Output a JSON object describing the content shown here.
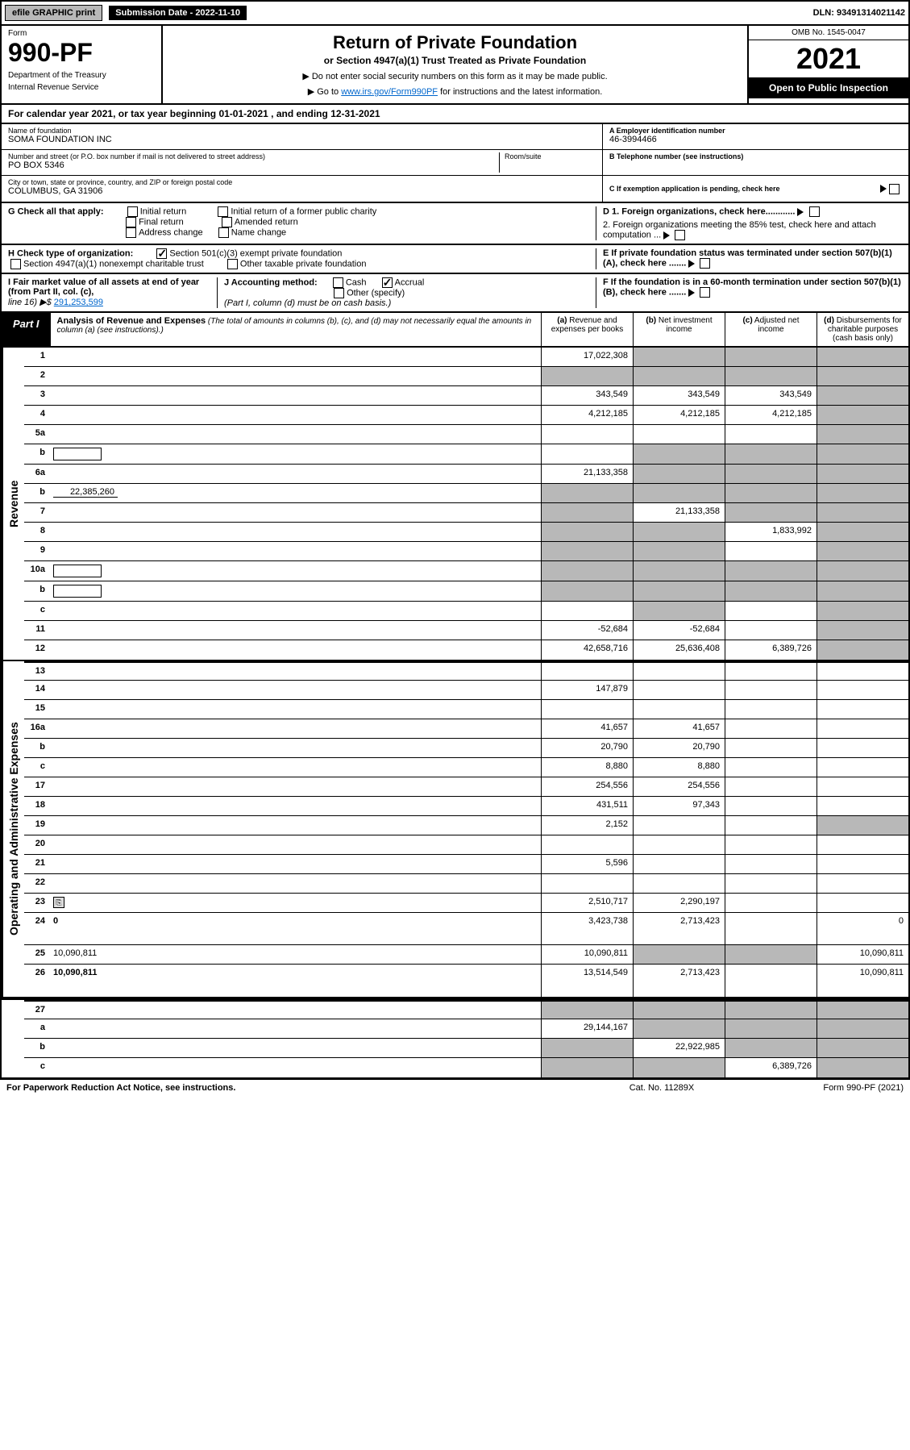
{
  "top_bar": {
    "efile": "efile GRAPHIC print",
    "submission": "Submission Date - 2022-11-10",
    "dln": "DLN: 93491314021142"
  },
  "header": {
    "form_label": "Form",
    "form_number": "990-PF",
    "dept1": "Department of the Treasury",
    "dept2": "Internal Revenue Service",
    "title": "Return of Private Foundation",
    "subtitle": "or Section 4947(a)(1) Trust Treated as Private Foundation",
    "instr1": "▶ Do not enter social security numbers on this form as it may be made public.",
    "instr2_prefix": "▶ Go to ",
    "instr2_link": "www.irs.gov/Form990PF",
    "instr2_suffix": " for instructions and the latest information.",
    "omb": "OMB No. 1545-0047",
    "year": "2021",
    "open_public": "Open to Public Inspection"
  },
  "cal_year": {
    "prefix": "For calendar year 2021, or tax year beginning ",
    "begin": "01-01-2021",
    "mid": " , and ending ",
    "end": "12-31-2021"
  },
  "foundation": {
    "name_lbl": "Name of foundation",
    "name": "SOMA FOUNDATION INC",
    "addr_lbl": "Number and street (or P.O. box number if mail is not delivered to street address)",
    "addr": "PO BOX 5346",
    "room_lbl": "Room/suite",
    "room": "",
    "city_lbl": "City or town, state or province, country, and ZIP or foreign postal code",
    "city": "COLUMBUS, GA  31906",
    "ein_lbl": "A Employer identification number",
    "ein": "46-3994466",
    "phone_lbl": "B Telephone number (see instructions)",
    "phone": "",
    "c_lbl": "C If exemption application is pending, check here"
  },
  "section_g": {
    "lbl": "G Check all that apply:",
    "opts": [
      "Initial return",
      "Final return",
      "Address change",
      "Initial return of a former public charity",
      "Amended return",
      "Name change"
    ]
  },
  "section_d": {
    "d1": "D 1. Foreign organizations, check here............",
    "d2": "2. Foreign organizations meeting the 85% test, check here and attach computation ..."
  },
  "section_h": {
    "lbl": "H Check type of organization:",
    "opt1": "Section 501(c)(3) exempt private foundation",
    "opt2": "Section 4947(a)(1) nonexempt charitable trust",
    "opt3": "Other taxable private foundation"
  },
  "section_e": "E  If private foundation status was terminated under section 507(b)(1)(A), check here .......",
  "section_i": {
    "lbl": "I Fair market value of all assets at end of year (from Part II, col. (c),",
    "line": "line 16) ▶$ ",
    "val": "291,253,599"
  },
  "section_j": {
    "lbl": "J Accounting method:",
    "cash": "Cash",
    "accrual": "Accrual",
    "other": "Other (specify)",
    "note": "(Part I, column (d) must be on cash basis.)"
  },
  "section_f": "F  If the foundation is in a 60-month termination under section 507(b)(1)(B), check here .......",
  "part1": {
    "label": "Part I",
    "title": "Analysis of Revenue and Expenses",
    "desc": " (The total of amounts in columns (b), (c), and (d) may not necessarily equal the amounts in column (a) (see instructions).)",
    "cols": [
      {
        "ltr": "(a)",
        "txt": "Revenue and expenses per books"
      },
      {
        "ltr": "(b)",
        "txt": "Net investment income"
      },
      {
        "ltr": "(c)",
        "txt": "Adjusted net income"
      },
      {
        "ltr": "(d)",
        "txt": "Disbursements for charitable purposes (cash basis only)"
      }
    ]
  },
  "side_labels": {
    "revenue": "Revenue",
    "expenses": "Operating and Administrative Expenses"
  },
  "rows": [
    {
      "n": "1",
      "d": "",
      "a": "17,022,308",
      "b": "",
      "c": "",
      "bs": true,
      "cs": true,
      "ds": true
    },
    {
      "n": "2",
      "d": "",
      "a": "",
      "b": "",
      "c": "",
      "bs": true,
      "cs": true,
      "ds": true,
      "noborder_a": true
    },
    {
      "n": "3",
      "d": "",
      "a": "343,549",
      "b": "343,549",
      "c": "343,549",
      "ds": true
    },
    {
      "n": "4",
      "d": "",
      "a": "4,212,185",
      "b": "4,212,185",
      "c": "4,212,185",
      "ds": true
    },
    {
      "n": "5a",
      "d": "",
      "a": "",
      "b": "",
      "c": "",
      "ds": true
    },
    {
      "n": "b",
      "d": "",
      "a": "",
      "b": "",
      "c": "",
      "bs": true,
      "cs": true,
      "ds": true,
      "inline_box": true
    },
    {
      "n": "6a",
      "d": "",
      "a": "21,133,358",
      "b": "",
      "c": "",
      "bs": true,
      "cs": true,
      "ds": true
    },
    {
      "n": "b",
      "d": "",
      "a": "",
      "b": "",
      "c": "",
      "bs": true,
      "cs": true,
      "ds": true,
      "inline_val": "22,385,260",
      "noborder_a": true
    },
    {
      "n": "7",
      "d": "",
      "a": "",
      "b": "21,133,358",
      "c": "",
      "as": true,
      "cs": true,
      "ds": true
    },
    {
      "n": "8",
      "d": "",
      "a": "",
      "b": "",
      "c": "1,833,992",
      "as": true,
      "bs": true,
      "ds": true
    },
    {
      "n": "9",
      "d": "",
      "a": "",
      "b": "",
      "c": "",
      "as": true,
      "bs": true,
      "ds": true
    },
    {
      "n": "10a",
      "d": "",
      "a": "",
      "b": "",
      "c": "",
      "bs": true,
      "cs": true,
      "ds": true,
      "inline_box": true,
      "noborder_a": true
    },
    {
      "n": "b",
      "d": "",
      "a": "",
      "b": "",
      "c": "",
      "bs": true,
      "cs": true,
      "ds": true,
      "inline_box": true,
      "noborder_a": true
    },
    {
      "n": "c",
      "d": "",
      "a": "",
      "b": "",
      "c": "",
      "bs": true,
      "ds": true
    },
    {
      "n": "11",
      "d": "",
      "a": "-52,684",
      "b": "-52,684",
      "c": "",
      "ds": true
    },
    {
      "n": "12",
      "d": "",
      "a": "42,658,716",
      "b": "25,636,408",
      "c": "6,389,726",
      "ds": true,
      "bold": true
    }
  ],
  "exp_rows": [
    {
      "n": "13",
      "d": "",
      "a": "",
      "b": "",
      "c": ""
    },
    {
      "n": "14",
      "d": "",
      "a": "147,879",
      "b": "",
      "c": ""
    },
    {
      "n": "15",
      "d": "",
      "a": "",
      "b": "",
      "c": ""
    },
    {
      "n": "16a",
      "d": "",
      "a": "41,657",
      "b": "41,657",
      "c": ""
    },
    {
      "n": "b",
      "d": "",
      "a": "20,790",
      "b": "20,790",
      "c": ""
    },
    {
      "n": "c",
      "d": "",
      "a": "8,880",
      "b": "8,880",
      "c": ""
    },
    {
      "n": "17",
      "d": "",
      "a": "254,556",
      "b": "254,556",
      "c": ""
    },
    {
      "n": "18",
      "d": "",
      "a": "431,511",
      "b": "97,343",
      "c": ""
    },
    {
      "n": "19",
      "d": "",
      "a": "2,152",
      "b": "",
      "c": "",
      "ds": true
    },
    {
      "n": "20",
      "d": "",
      "a": "",
      "b": "",
      "c": ""
    },
    {
      "n": "21",
      "d": "",
      "a": "5,596",
      "b": "",
      "c": ""
    },
    {
      "n": "22",
      "d": "",
      "a": "",
      "b": "",
      "c": ""
    },
    {
      "n": "23",
      "d": "",
      "a": "2,510,717",
      "b": "2,290,197",
      "c": "",
      "icon": true
    },
    {
      "n": "24",
      "d": "0",
      "a": "3,423,738",
      "b": "2,713,423",
      "c": "",
      "bold": true,
      "tall": true
    },
    {
      "n": "25",
      "d": "10,090,811",
      "a": "10,090,811",
      "b": "",
      "c": "",
      "bs": true,
      "cs": true
    },
    {
      "n": "26",
      "d": "10,090,811",
      "a": "13,514,549",
      "b": "2,713,423",
      "c": "",
      "bold": true,
      "tall": true
    }
  ],
  "final_rows": [
    {
      "n": "27",
      "d": "",
      "a": "",
      "b": "",
      "c": "",
      "as": true,
      "bs": true,
      "cs": true,
      "ds": true
    },
    {
      "n": "a",
      "d": "",
      "a": "29,144,167",
      "b": "",
      "c": "",
      "bs": true,
      "cs": true,
      "ds": true,
      "bold": true
    },
    {
      "n": "b",
      "d": "",
      "a": "",
      "b": "22,922,985",
      "c": "",
      "as": true,
      "cs": true,
      "ds": true,
      "bold": true
    },
    {
      "n": "c",
      "d": "",
      "a": "",
      "b": "",
      "c": "6,389,726",
      "as": true,
      "bs": true,
      "ds": true,
      "bold": true
    }
  ],
  "footer": {
    "left": "For Paperwork Reduction Act Notice, see instructions.",
    "center": "Cat. No. 11289X",
    "right": "Form 990-PF (2021)"
  },
  "colors": {
    "black": "#000000",
    "gray": "#b8b8b8",
    "link": "#0066cc",
    "shade": "#b8b8b8"
  }
}
